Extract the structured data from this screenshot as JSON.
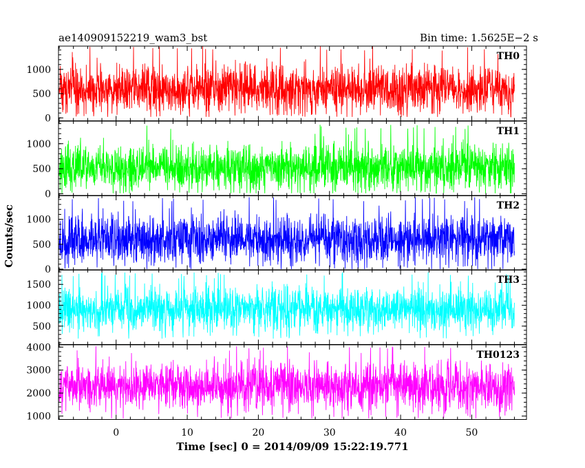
{
  "chart_data": {
    "type": "line",
    "header_left": "ae140909152219_wam3_bst",
    "header_right": "Bin time: 1.5625E−2 s",
    "xlabel": "Time [sec] 0 = 2014/09/09 15:22:19.771",
    "ylabel": "Counts/sec",
    "xlim": [
      -8.1,
      57.7
    ],
    "xticks": [
      0,
      10,
      20,
      30,
      40,
      50
    ],
    "x_range": [
      -8,
      56
    ],
    "bin_time": 0.015625,
    "panels": [
      {
        "label": "TH0",
        "color": "#ff0000",
        "ylim": [
          -60,
          1480
        ],
        "yticks": [
          0,
          500,
          1000
        ],
        "ytick_labels": [
          "0",
          "500",
          "1000"
        ],
        "mean": 600,
        "min": 20,
        "max": 1480
      },
      {
        "label": "TH1",
        "color": "#00ff00",
        "ylim": [
          -40,
          1450
        ],
        "yticks": [
          0,
          500,
          1000
        ],
        "ytick_labels": [
          "0",
          "500",
          "1000"
        ],
        "mean": 520,
        "min": 10,
        "max": 1380
      },
      {
        "label": "TH2",
        "color": "#0000ff",
        "ylim": [
          -20,
          1480
        ],
        "yticks": [
          0,
          500,
          1000
        ],
        "ytick_labels": [
          "0",
          "500",
          "1000"
        ],
        "mean": 600,
        "min": 0,
        "max": 1450
      },
      {
        "label": "TH3",
        "color": "#00ffff",
        "ylim": [
          60,
          1850
        ],
        "yticks": [
          500,
          1000,
          1500
        ],
        "ytick_labels": [
          "500",
          "1000",
          "1500"
        ],
        "mean": 900,
        "min": 200,
        "max": 1800
      },
      {
        "label": "TH0123",
        "color": "#ff00ff",
        "ylim": [
          850,
          4100
        ],
        "yticks": [
          1000,
          2000,
          3000,
          4000
        ],
        "ytick_labels": [
          "1000",
          "2000",
          "3000",
          "4000"
        ],
        "mean": 2300,
        "min": 900,
        "max": 4050
      }
    ]
  }
}
